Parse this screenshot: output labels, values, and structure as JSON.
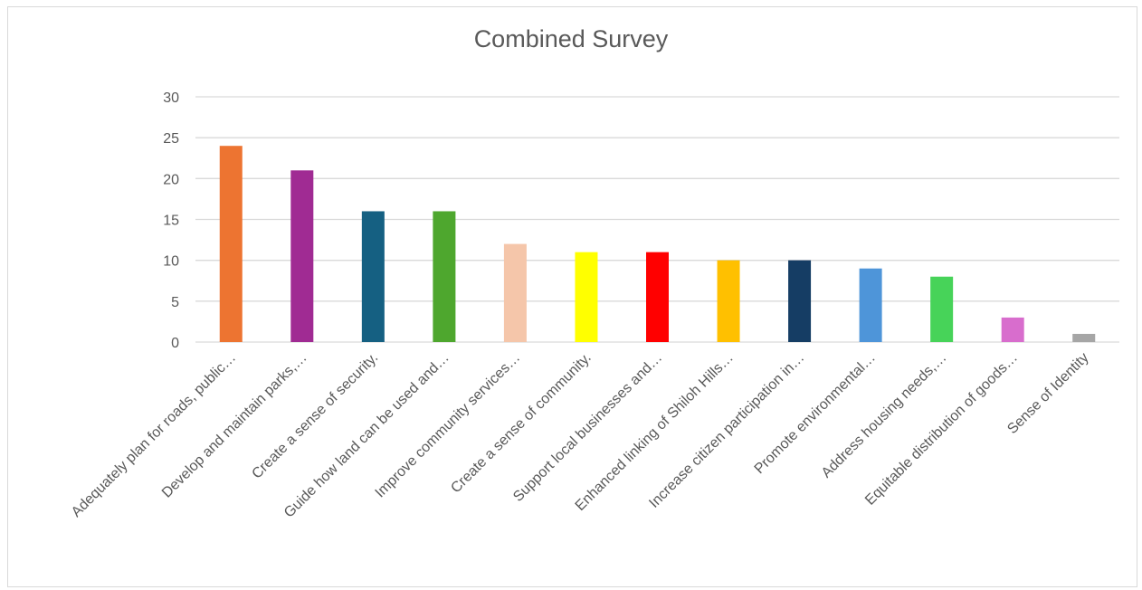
{
  "chart_data": {
    "type": "bar",
    "title": "Combined Survey",
    "categories": [
      "Adequately plan for roads, public…",
      "Develop and maintain parks,…",
      "Create a sense of security.",
      "Guide how land can be used and…",
      "Improve community services…",
      "Create a sense of community.",
      "Support local businesses and…",
      "Enhanced linking of Shiloh Hills…",
      "Increase citizen participation in…",
      "Promote environmental…",
      "Address housing needs,…",
      "Equitable distribution of goods…",
      "Sense of Identity"
    ],
    "values": [
      24,
      21,
      16,
      16,
      12,
      11,
      11,
      10,
      10,
      9,
      8,
      3,
      1
    ],
    "colors": [
      "#ED7431",
      "#A02B93",
      "#156082",
      "#4EA72E",
      "#F5C6AA",
      "#FFFF00",
      "#FF0000",
      "#FFC000",
      "#153D64",
      "#4E95D9",
      "#47D359",
      "#D86DCD",
      "#A6A6A6"
    ],
    "yticks": [
      "0",
      "5",
      "10",
      "15",
      "20",
      "25",
      "30"
    ],
    "ylim": [
      0,
      30
    ],
    "grid": true,
    "legend": "none"
  }
}
